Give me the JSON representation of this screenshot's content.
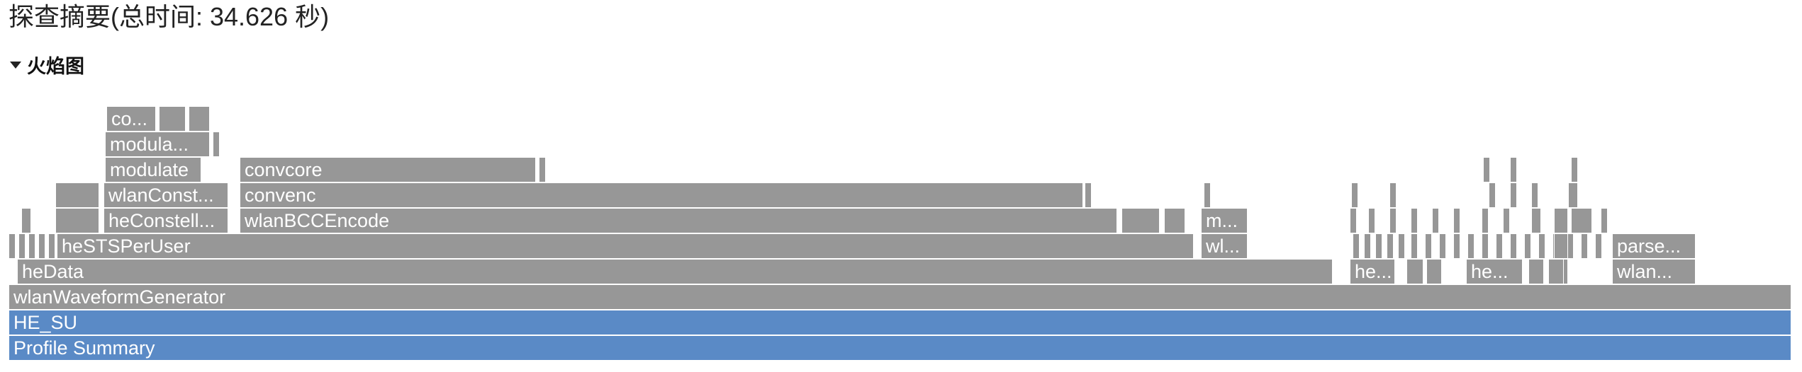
{
  "header": {
    "title": "探查摘要(总时间: 34.626 秒)"
  },
  "flame_section": {
    "title": "火焰图",
    "expanded": true
  },
  "colors": {
    "frame": "#979797",
    "root_frame": "#5a8ac6",
    "frame_text": "#ffffff"
  },
  "flame_graph": {
    "frames": [
      {
        "label": "Profile Summary",
        "kind": "root"
      },
      {
        "label": "HE_SU",
        "kind": "root"
      },
      {
        "label": "wlanWaveformGenerator"
      },
      {
        "label": "heData"
      },
      {
        "label": "he..."
      },
      {
        "label": "he..."
      },
      {
        "label": "wlan..."
      },
      {
        "label": "heSTSPerUser"
      },
      {
        "label": "wl..."
      },
      {
        "label": "parse..."
      },
      {
        "label": "heConstell..."
      },
      {
        "label": "wlanBCCEncode"
      },
      {
        "label": "m..."
      },
      {
        "label": "wlanConst..."
      },
      {
        "label": "convenc"
      },
      {
        "label": "modulate"
      },
      {
        "label": "convcore"
      },
      {
        "label": "modula..."
      },
      {
        "label": "co..."
      }
    ]
  }
}
